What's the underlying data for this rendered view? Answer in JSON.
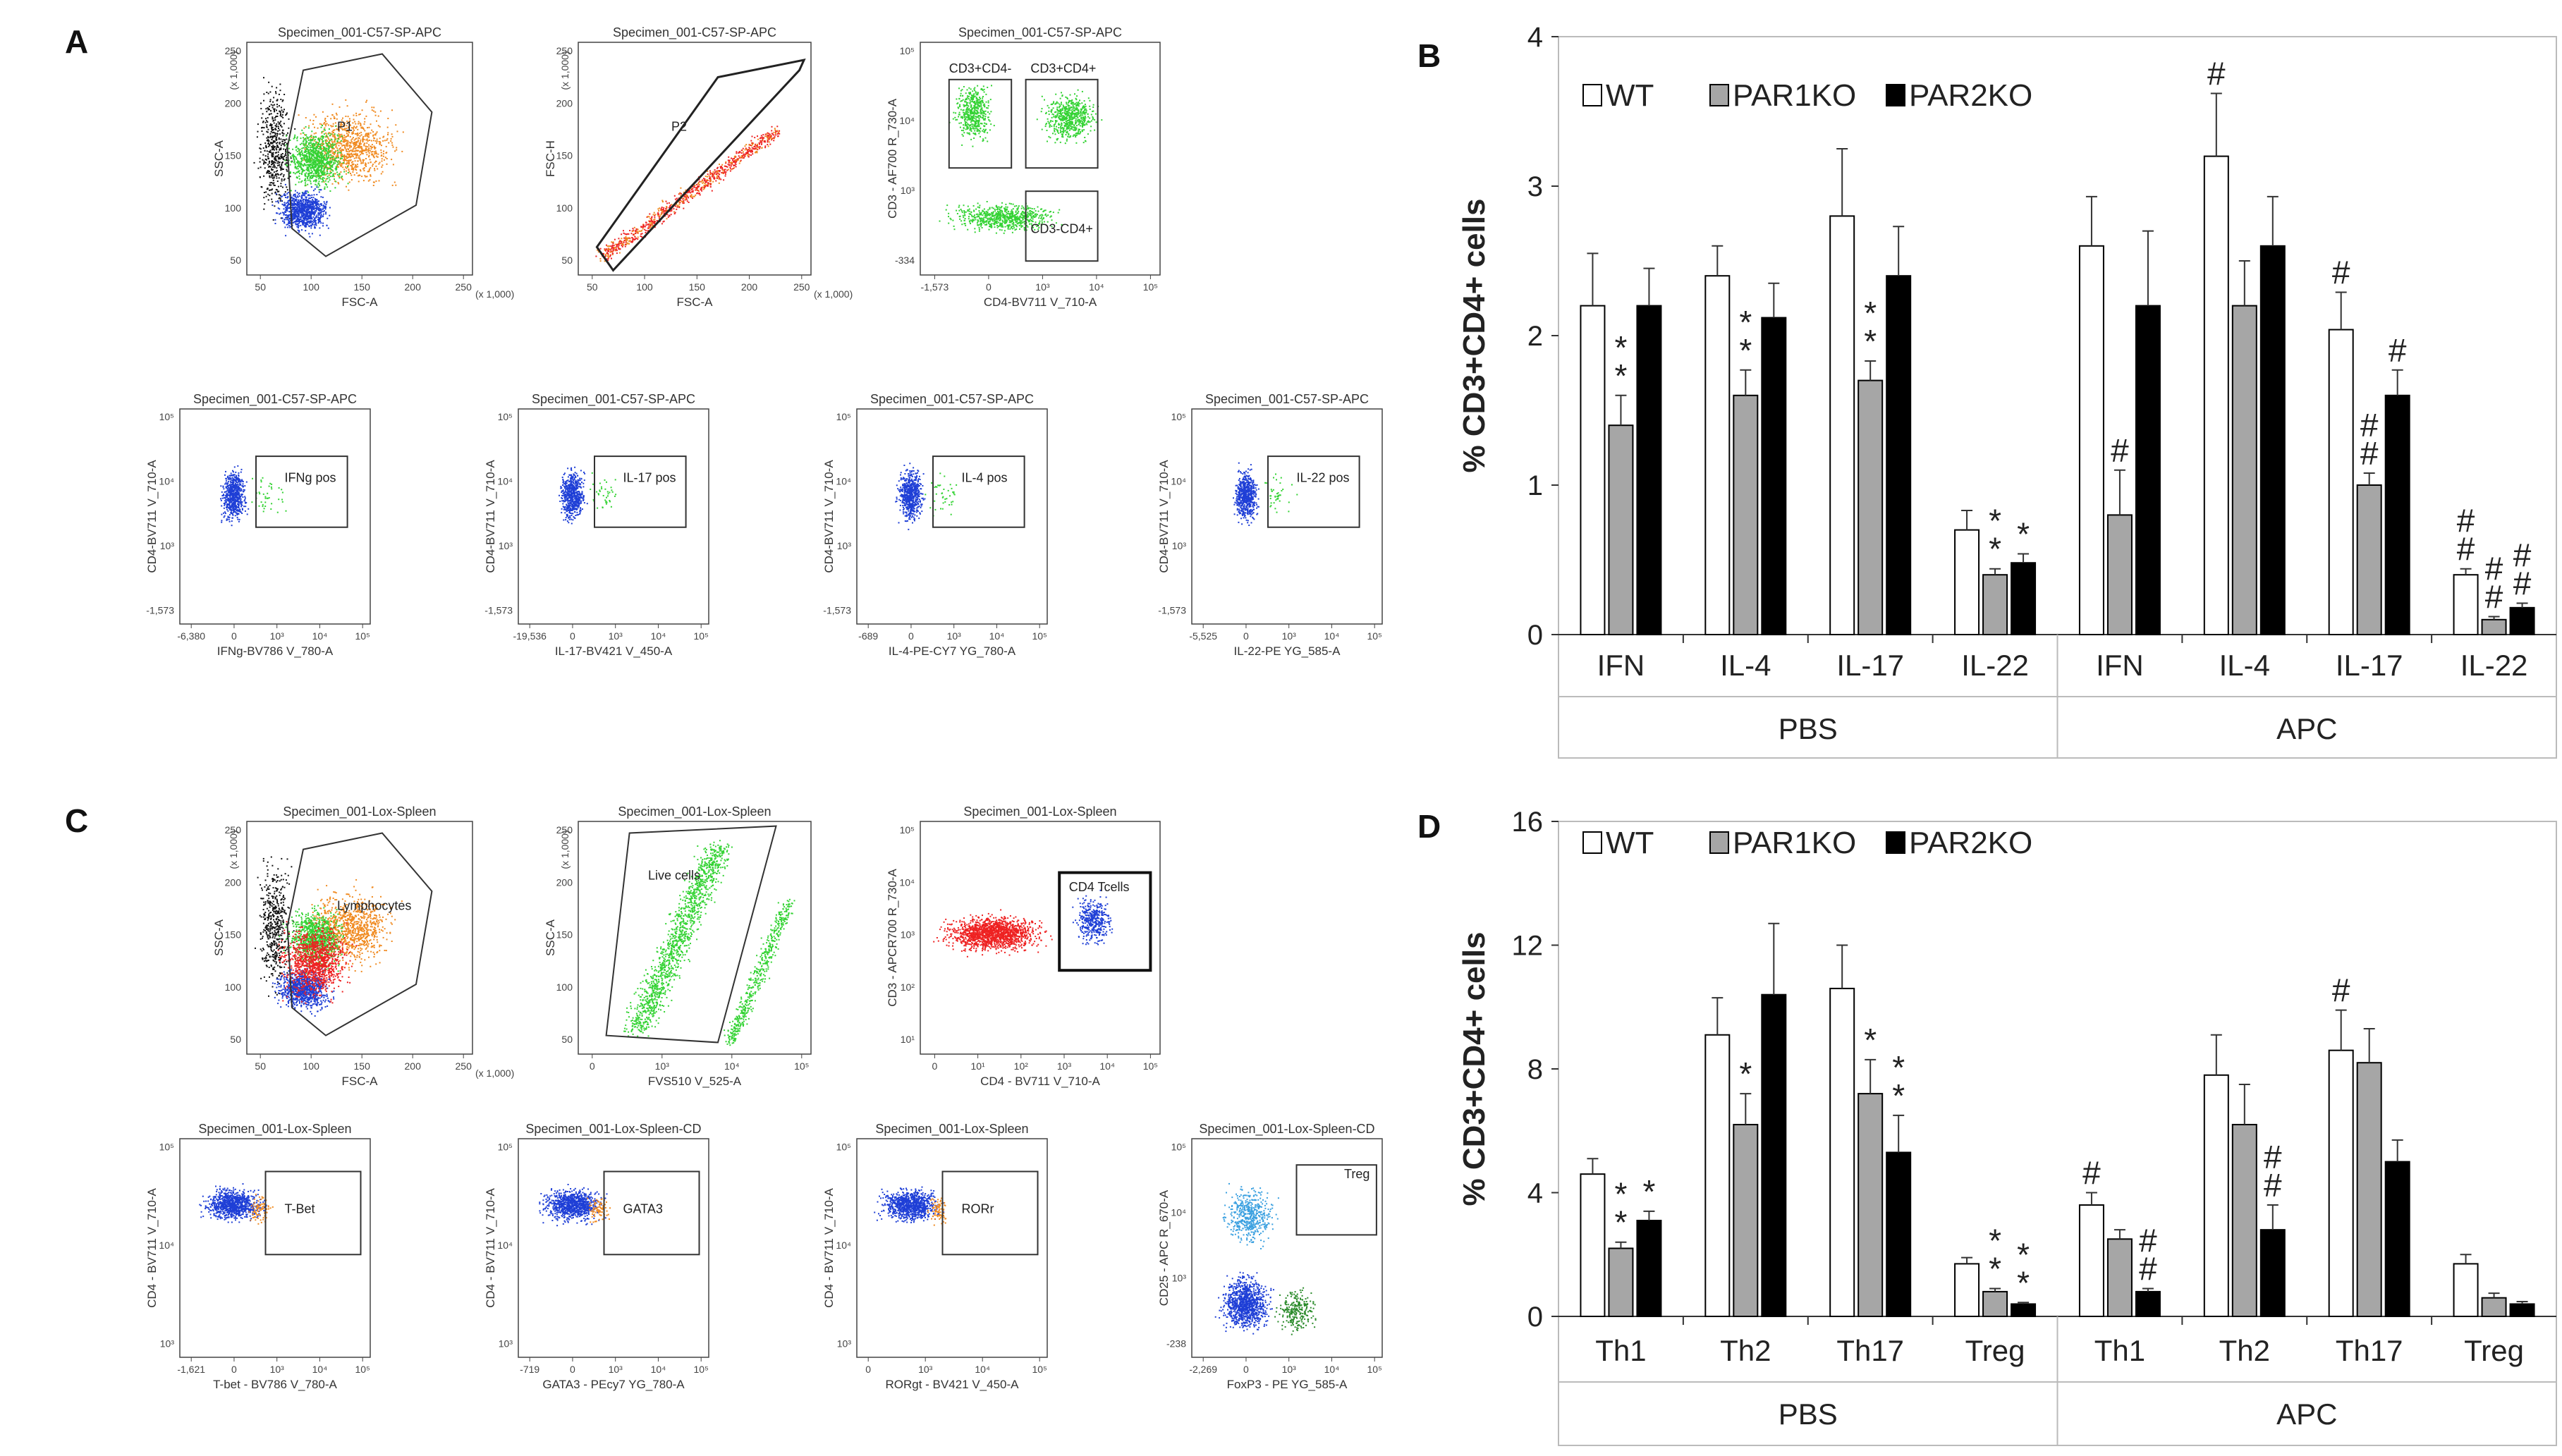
{
  "panels": {
    "a": "A",
    "b": "B",
    "c": "C",
    "d": "D"
  },
  "flow_a": [
    {
      "title": "Specimen_001-C57-SP-APC",
      "xlabel": "FSC-A",
      "ylabel": "SSC-A",
      "xscale": "(x 1,000)",
      "yscale": "(x 1,000)",
      "xticks": [
        "50",
        "100",
        "150",
        "200",
        "250"
      ],
      "yticks": [
        "50",
        "100",
        "150",
        "200",
        "250"
      ],
      "gates": [
        "P1"
      ],
      "type": "fsc_ssc"
    },
    {
      "title": "Specimen_001-C57-SP-APC",
      "xlabel": "FSC-A",
      "ylabel": "FSC-H",
      "xscale": "(x 1,000)",
      "yscale": "(x 1,000)",
      "xticks": [
        "50",
        "100",
        "150",
        "200",
        "250"
      ],
      "yticks": [
        "50",
        "100",
        "150",
        "200",
        "250"
      ],
      "gates": [
        "P2"
      ],
      "type": "singlet"
    },
    {
      "title": "Specimen_001-C57-SP-APC",
      "xlabel": "CD4-BV711 V_710-A",
      "ylabel": "CD3 - AF700 R_730-A",
      "xticks": [
        "-1,573",
        "0",
        "10³",
        "10⁴",
        "10⁵"
      ],
      "yticks": [
        "-334",
        "10³",
        "10⁴",
        "10⁵"
      ],
      "gates": [
        "CD3+CD4-",
        "CD3+CD4+",
        "CD3-CD4+"
      ],
      "type": "quad"
    },
    {
      "title": "Specimen_001-C57-SP-APC",
      "xlabel": "IFNg-BV786 V_780-A",
      "ylabel": "CD4-BV711 V_710-A",
      "xticks": [
        "-6,380",
        "0",
        "10³",
        "10⁴",
        "10⁵"
      ],
      "yticks": [
        "-1,573",
        "10³",
        "10⁴",
        "10⁵"
      ],
      "gates": [
        "IFNg pos"
      ],
      "type": "cyto"
    },
    {
      "title": "Specimen_001-C57-SP-APC",
      "xlabel": "IL-17-BV421 V_450-A",
      "ylabel": "CD4-BV711 V_710-A",
      "xticks": [
        "-19,536",
        "0",
        "10³",
        "10⁴",
        "10⁵"
      ],
      "yticks": [
        "-1,573",
        "10³",
        "10⁴",
        "10⁵"
      ],
      "gates": [
        "IL-17 pos"
      ],
      "type": "cyto"
    },
    {
      "title": "Specimen_001-C57-SP-APC",
      "xlabel": "IL-4-PE-CY7 YG_780-A",
      "ylabel": "CD4-BV711 V_710-A",
      "xticks": [
        "-689",
        "0",
        "10³",
        "10⁴",
        "10⁵"
      ],
      "yticks": [
        "-1,573",
        "10³",
        "10⁴",
        "10⁵"
      ],
      "gates": [
        "IL-4 pos"
      ],
      "type": "cyto"
    },
    {
      "title": "Specimen_001-C57-SP-APC",
      "xlabel": "IL-22-PE YG_585-A",
      "ylabel": "CD4-BV711 V_710-A",
      "xticks": [
        "-5,525",
        "0",
        "10³",
        "10⁴",
        "10⁵"
      ],
      "yticks": [
        "-1,573",
        "10³",
        "10⁴",
        "10⁵"
      ],
      "gates": [
        "IL-22 pos"
      ],
      "type": "cyto"
    }
  ],
  "flow_c": [
    {
      "title": "Specimen_001-Lox-Spleen",
      "xlabel": "FSC-A",
      "ylabel": "SSC-A",
      "xscale": "(x 1,000)",
      "yscale": "(x 1,000)",
      "xticks": [
        "50",
        "100",
        "150",
        "200",
        "250"
      ],
      "yticks": [
        "50",
        "100",
        "150",
        "200",
        "250"
      ],
      "gates": [
        "Lymphocytes"
      ],
      "type": "fsc_ssc"
    },
    {
      "title": "Specimen_001-Lox-Spleen",
      "xlabel": "FVS510 V_525-A",
      "ylabel": "SSC-A",
      "yscale": "(x 1,000)",
      "xticks": [
        "0",
        "10³",
        "10⁴",
        "10⁵"
      ],
      "yticks": [
        "50",
        "100",
        "150",
        "200",
        "250"
      ],
      "gates": [
        "Live cells"
      ],
      "type": "live"
    },
    {
      "title": "Specimen_001-Lox-Spleen",
      "xlabel": "CD4 - BV711 V_710-A",
      "ylabel": "CD3 - APCR700 R_730-A",
      "xticks": [
        "0",
        "10¹",
        "10²",
        "10³",
        "10⁴",
        "10⁵"
      ],
      "yticks": [
        "10¹",
        "10²",
        "10³",
        "10⁴",
        "10⁵"
      ],
      "gates": [
        "CD4 Tcells"
      ],
      "type": "tcell"
    },
    {
      "title": "Specimen_001-Lox-Spleen",
      "xlabel": "T-bet - BV786 V_780-A",
      "ylabel": "CD4 - BV711 V_710-A",
      "xticks": [
        "-1,621",
        "0",
        "10³",
        "10⁴",
        "10⁵"
      ],
      "yticks": [
        "10³",
        "10⁴",
        "10⁵"
      ],
      "gates": [
        "T-Bet"
      ],
      "type": "tf"
    },
    {
      "title": "Specimen_001-Lox-Spleen-CD",
      "xlabel": "GATA3 - PEcy7 YG_780-A",
      "ylabel": "CD4 - BV711 V_710-A",
      "xticks": [
        "-719",
        "0",
        "10³",
        "10⁴",
        "10⁵"
      ],
      "yticks": [
        "10³",
        "10⁴",
        "10⁵"
      ],
      "gates": [
        "GATA3"
      ],
      "type": "tf"
    },
    {
      "title": "Specimen_001-Lox-Spleen",
      "xlabel": "RORgt - BV421 V_450-A",
      "ylabel": "CD4 - BV711 V_710-A",
      "xticks": [
        "0",
        "10³",
        "10⁴",
        "10⁵"
      ],
      "yticks": [
        "10³",
        "10⁴",
        "10⁵"
      ],
      "gates": [
        "RORr"
      ],
      "type": "tf"
    },
    {
      "title": "Specimen_001-Lox-Spleen-CD",
      "xlabel": "FoxP3 - PE YG_585-A",
      "ylabel": "CD25 - APC R_670-A",
      "xticks": [
        "-2,269",
        "0",
        "10³",
        "10⁴",
        "10⁵"
      ],
      "yticks": [
        "-238",
        "10³",
        "10⁴",
        "10⁵"
      ],
      "gates": [
        "Treg"
      ],
      "type": "treg"
    }
  ],
  "colors": {
    "WT": "#ffffff",
    "PAR1KO": "#a6a6a6",
    "PAR2KO": "#000000",
    "blue": "#1f3fd6",
    "green": "#34d334",
    "red": "#ee2222",
    "orange": "#f08a20"
  },
  "chart_data": [
    {
      "type": "bar",
      "panel": "B",
      "ylabel": "% CD3+CD4+ cells",
      "ylim": [
        0,
        4
      ],
      "yticks": [
        "0",
        "1",
        "2",
        "3",
        "4"
      ],
      "categories": [
        "IFN",
        "IL-4",
        "IL-17",
        "IL-22",
        "IFN",
        "IL-4",
        "IL-17",
        "IL-22"
      ],
      "groups": [
        "PBS",
        "APC"
      ],
      "legend": [
        "WT",
        "PAR1KO",
        "PAR2KO"
      ],
      "series": [
        {
          "name": "WT",
          "values": [
            2.2,
            2.4,
            2.8,
            0.7,
            2.6,
            3.2,
            2.04,
            0.4
          ],
          "errors": [
            0.35,
            0.2,
            0.45,
            0.13,
            0.33,
            0.42,
            0.25,
            0.04
          ]
        },
        {
          "name": "PAR1KO",
          "values": [
            1.4,
            1.6,
            1.7,
            0.4,
            0.8,
            2.2,
            1.0,
            0.1
          ],
          "errors": [
            0.2,
            0.17,
            0.13,
            0.04,
            0.3,
            0.3,
            0.08,
            0.02
          ]
        },
        {
          "name": "PAR2KO",
          "values": [
            2.2,
            2.12,
            2.4,
            0.48,
            2.2,
            2.6,
            1.6,
            0.18
          ],
          "errors": [
            0.25,
            0.23,
            0.33,
            0.06,
            0.5,
            0.33,
            0.17,
            0.03
          ]
        }
      ],
      "annotations": [
        {
          "cat": 1,
          "series": "PAR1KO",
          "text": "*",
          "stack": 2
        },
        {
          "cat": 2,
          "series": "PAR1KO",
          "text": "*",
          "stack": 2
        },
        {
          "cat": 3,
          "series": "PAR1KO",
          "text": "*",
          "stack": 2
        },
        {
          "cat": 4,
          "series": "PAR1KO",
          "text": "*",
          "stack": 2
        },
        {
          "cat": 4,
          "series": "PAR2KO",
          "text": "*",
          "stack": 1
        },
        {
          "cat": 5,
          "series": "PAR1KO",
          "text": "#",
          "stack": 1
        },
        {
          "cat": 6,
          "series": "WT",
          "text": "#",
          "stack": 1
        },
        {
          "cat": 7,
          "series": "WT",
          "text": "#",
          "stack": 1
        },
        {
          "cat": 7,
          "series": "PAR1KO",
          "text": "#",
          "stack": 2
        },
        {
          "cat": 7,
          "series": "PAR2KO",
          "text": "#",
          "stack": 1
        },
        {
          "cat": 8,
          "series": "WT",
          "text": "#",
          "stack": 2
        },
        {
          "cat": 8,
          "series": "PAR1KO",
          "text": "#",
          "stack": 2
        },
        {
          "cat": 8,
          "series": "PAR2KO",
          "text": "#",
          "stack": 2
        }
      ]
    },
    {
      "type": "bar",
      "panel": "D",
      "ylabel": "% CD3+CD4+ cells",
      "ylim": [
        0,
        16
      ],
      "yticks": [
        "0",
        "4",
        "8",
        "12",
        "16"
      ],
      "categories": [
        "Th1",
        "Th2",
        "Th17",
        "Treg",
        "Th1",
        "Th2",
        "Th17",
        "Treg"
      ],
      "groups": [
        "PBS",
        "APC"
      ],
      "legend": [
        "WT",
        "PAR1KO",
        "PAR2KO"
      ],
      "series": [
        {
          "name": "WT",
          "values": [
            4.6,
            9.1,
            10.6,
            1.7,
            3.6,
            7.8,
            8.6,
            1.7
          ],
          "errors": [
            0.5,
            1.2,
            1.4,
            0.2,
            0.4,
            1.3,
            1.3,
            0.3
          ]
        },
        {
          "name": "PAR1KO",
          "values": [
            2.2,
            6.2,
            7.2,
            0.8,
            2.5,
            6.2,
            8.2,
            0.6
          ],
          "errors": [
            0.2,
            1.0,
            1.1,
            0.1,
            0.3,
            1.3,
            1.1,
            0.15
          ]
        },
        {
          "name": "PAR2KO",
          "values": [
            3.1,
            10.4,
            5.3,
            0.4,
            0.8,
            2.8,
            5.0,
            0.4
          ],
          "errors": [
            0.3,
            2.3,
            1.2,
            0.05,
            0.1,
            0.8,
            0.7,
            0.08
          ]
        }
      ],
      "annotations": [
        {
          "cat": 1,
          "series": "PAR1KO",
          "text": "*",
          "stack": 2
        },
        {
          "cat": 1,
          "series": "PAR2KO",
          "text": "*",
          "stack": 1
        },
        {
          "cat": 2,
          "series": "PAR1KO",
          "text": "*",
          "stack": 1
        },
        {
          "cat": 3,
          "series": "PAR1KO",
          "text": "*",
          "stack": 1
        },
        {
          "cat": 3,
          "series": "PAR2KO",
          "text": "*",
          "stack": 2
        },
        {
          "cat": 4,
          "series": "PAR1KO",
          "text": "*",
          "stack": 2
        },
        {
          "cat": 4,
          "series": "PAR2KO",
          "text": "*",
          "stack": 2
        },
        {
          "cat": 5,
          "series": "WT",
          "text": "#",
          "stack": 1
        },
        {
          "cat": 5,
          "series": "PAR2KO",
          "text": "#",
          "stack": 2
        },
        {
          "cat": 6,
          "series": "PAR2KO",
          "text": "#",
          "stack": 2
        },
        {
          "cat": 7,
          "series": "WT",
          "text": "#",
          "stack": 1
        }
      ]
    }
  ]
}
